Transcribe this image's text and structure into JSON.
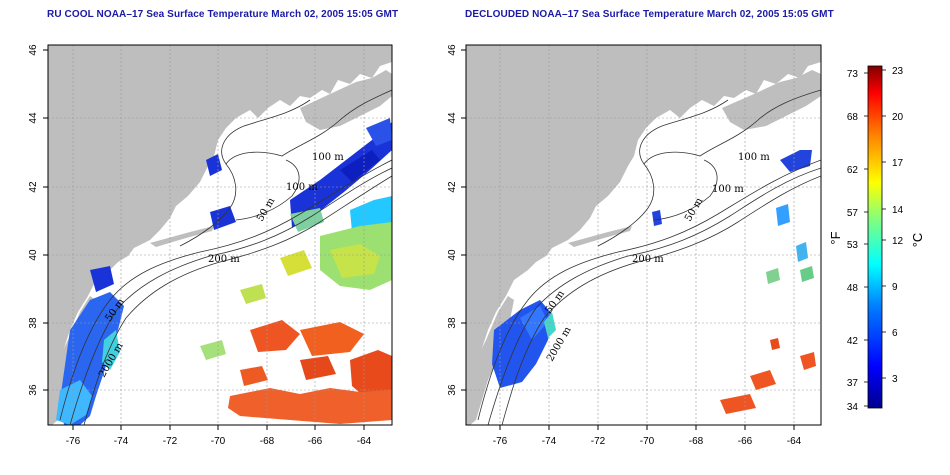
{
  "panels": [
    {
      "id": "left",
      "title": "RU COOL NOAA–17 Sea Surface Temperature March 02, 2005 15:05 GMT",
      "variant": "ru-cool"
    },
    {
      "id": "right",
      "title": "DECLOUDED NOAA–17 Sea Surface Temperature March 02, 2005 15:05 GMT",
      "variant": "declouded"
    }
  ],
  "axes": {
    "x_ticks": [
      "-76",
      "-74",
      "-72",
      "-70",
      "-68",
      "-66",
      "-64"
    ],
    "y_ticks": [
      "36",
      "38",
      "40",
      "42",
      "44",
      "46"
    ],
    "lon_range": [
      -77,
      -63
    ],
    "lat_range": [
      35,
      46
    ],
    "grid": "dotted",
    "land_color": "#bebebe",
    "ocean_background": "#ffffff"
  },
  "contour_labels": {
    "left": [
      "100 m",
      "100 m",
      "50 m",
      "200 m",
      "50 m",
      "2000 m"
    ],
    "right": [
      "100 m",
      "100 m",
      "50 m",
      "200 m",
      "50 m",
      "2000 m"
    ]
  },
  "colorbar": {
    "left_label": "°F",
    "right_label": "°C",
    "f_ticks": [
      "73",
      "68",
      "62",
      "57",
      "53",
      "48",
      "42",
      "37",
      "34"
    ],
    "c_ticks": [
      "23",
      "20",
      "17",
      "14",
      "12",
      "9",
      "6",
      "3"
    ],
    "colors": [
      "#00008f",
      "#0000ff",
      "#0080ff",
      "#00ffff",
      "#80ff80",
      "#ffff00",
      "#ff8000",
      "#ff0000",
      "#800000"
    ]
  }
}
